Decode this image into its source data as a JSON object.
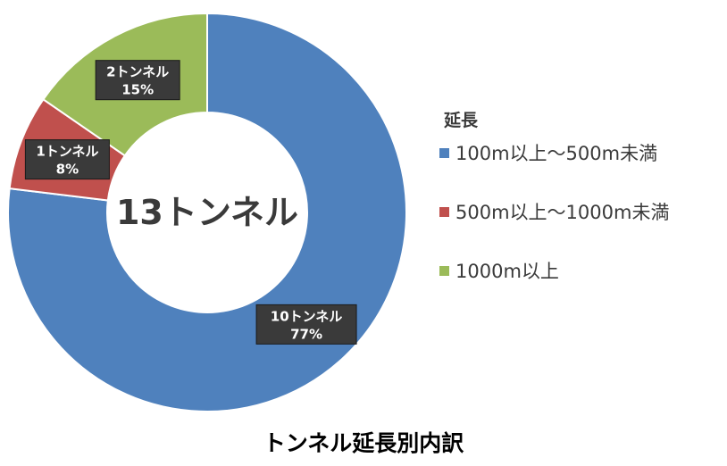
{
  "chart_data": {
    "type": "pie",
    "style": "donut",
    "center_label": "13トンネル",
    "caption": "トンネル延長別内訳",
    "legend_title": "延長",
    "legend_position": "right",
    "slices": [
      {
        "name": "100m以上～500m未満",
        "value": 10,
        "percent": 77,
        "count_label": "10トンネル",
        "percent_label": "77%",
        "color": "#4f81bd"
      },
      {
        "name": "500m以上～1000m未満",
        "value": 1,
        "percent": 8,
        "count_label": "1トンネル",
        "percent_label": "8%",
        "color": "#c0504d"
      },
      {
        "name": "1000m以上",
        "value": 2,
        "percent": 15,
        "count_label": "2トンネル",
        "percent_label": "15%",
        "color": "#9bbb59"
      }
    ]
  }
}
